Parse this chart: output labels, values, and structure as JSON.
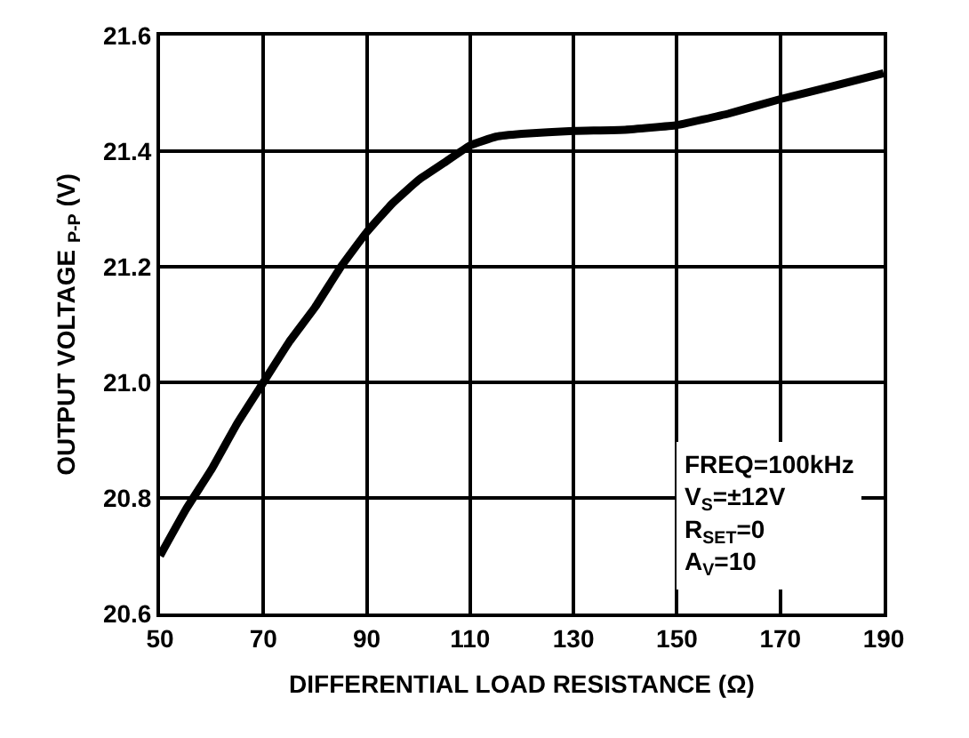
{
  "chart_data": {
    "type": "line",
    "xlabel": "DIFFERENTIAL LOAD RESISTANCE (Ω)",
    "ylabel": "OUTPUT VOLTAGE $_{P-P}$ (V)",
    "x": [
      50,
      55,
      60,
      65,
      70,
      75,
      80,
      85,
      90,
      95,
      100,
      105,
      110,
      115,
      120,
      130,
      140,
      150,
      160,
      170,
      180,
      190
    ],
    "series": [
      {
        "color": "#000000",
        "values": [
          20.7,
          20.78,
          20.85,
          20.93,
          21.0,
          21.07,
          21.13,
          21.2,
          21.26,
          21.31,
          21.35,
          21.38,
          21.41,
          21.425,
          21.43,
          21.435,
          21.437,
          21.445,
          21.465,
          21.49,
          21.512,
          21.535
        ]
      }
    ],
    "xlim": [
      50,
      190
    ],
    "xticks": [
      50,
      70,
      90,
      110,
      130,
      150,
      170,
      190
    ],
    "ylim": [
      20.6,
      21.6
    ],
    "yticks": [
      20.6,
      20.8,
      {
        "value": 21,
        "label": "21.0"
      },
      21.2,
      21.4,
      21.6
    ],
    "grid": true,
    "marker": "none",
    "line_style": "solid",
    "annotations": [
      "FREQ=100kHz",
      "V$_{S}$=±12V",
      "R$_{SET}$=0",
      "A$_{V}$=10"
    ]
  }
}
